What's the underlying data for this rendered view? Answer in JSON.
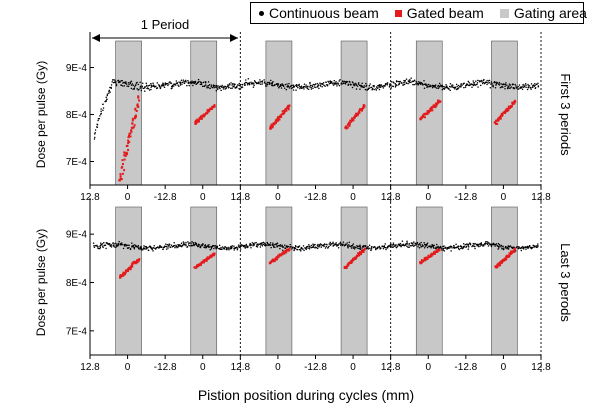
{
  "legend": {
    "continuous": "Continuous beam",
    "gated": "Gated beam",
    "gating": "Gating area"
  },
  "colors": {
    "continuous": "#000000",
    "gated": "#e41a1c",
    "gating": "#c8c8c8"
  },
  "period_annotation": "1 Period",
  "x_axis_title": "Pistion position during cycles  (mm)",
  "chart_data": [
    {
      "type": "scatter",
      "panel_label": "First 3 periods",
      "ylabel": "Dose per pulse (Gy)",
      "yticks": [
        "9E-4",
        "8E-4",
        "7E-4"
      ],
      "ytick_values": [
        0.0009,
        0.0008,
        0.0007
      ],
      "ylim": [
        0.00065,
        0.00095
      ],
      "xticks": [
        "12.8",
        "0",
        "-12.8",
        "0",
        "12.8",
        "0",
        "-12.8",
        "0",
        "12.8",
        "0",
        "-12.8",
        "0",
        "12.8"
      ],
      "x_range_mm": [
        -12.8,
        12.8
      ],
      "gating_half_periods": 6,
      "continuous_baseline": 0.000863,
      "continuous_spread": 8e-06,
      "continuous_initial_dip": 0.00066,
      "gated_ranges": [
        [
          0.00066,
          0.00084
        ],
        [
          0.00078,
          0.00082
        ],
        [
          0.00077,
          0.00082
        ],
        [
          0.00077,
          0.00082
        ],
        [
          0.00079,
          0.00083
        ],
        [
          0.00078,
          0.00083
        ]
      ],
      "dashed_lines_at_ticks": [
        4,
        8,
        12
      ]
    },
    {
      "type": "scatter",
      "panel_label": "Last 3 perods",
      "ylabel": "Dose per pulse (Gy)",
      "yticks": [
        "9E-4",
        "8E-4",
        "7E-4"
      ],
      "ytick_values": [
        0.0009,
        0.0008,
        0.0007
      ],
      "ylim": [
        0.00065,
        0.00095
      ],
      "xticks": [
        "12.8",
        "0",
        "-12.8",
        "0",
        "12.8",
        "0",
        "-12.8",
        "0",
        "12.8",
        "0",
        "-12.8",
        "0",
        "12.8"
      ],
      "x_range_mm": [
        -12.8,
        12.8
      ],
      "gating_half_periods": 6,
      "continuous_baseline": 0.000875,
      "continuous_spread": 6e-06,
      "continuous_initial_dip": null,
      "gated_ranges": [
        [
          0.00081,
          0.00085
        ],
        [
          0.00083,
          0.00086
        ],
        [
          0.00084,
          0.00087
        ],
        [
          0.00083,
          0.00087
        ],
        [
          0.00084,
          0.00087
        ],
        [
          0.00083,
          0.00087
        ]
      ],
      "dashed_lines_at_ticks": [
        4,
        8,
        12
      ]
    }
  ]
}
